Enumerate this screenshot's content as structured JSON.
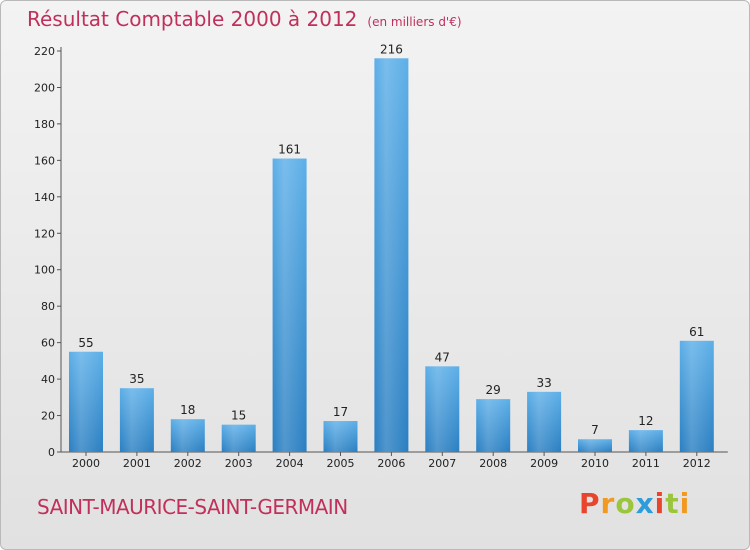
{
  "header": {
    "title": "Résultat Comptable 2000 à 2012",
    "unit": "(en milliers d'€)"
  },
  "footer": {
    "commune": "SAINT-MAURICE-SAINT-GERMAIN",
    "logo_text": "Proxiti"
  },
  "colors": {
    "title": "#c0305a",
    "bar_light": "#5dafe8",
    "bar_dark": "#2a7fc2",
    "logo": [
      "#e8452c",
      "#f29a1f",
      "#9bc53d",
      "#2d9cdb",
      "#e8452c",
      "#9bc53d",
      "#f29a1f"
    ]
  },
  "chart_data": {
    "type": "bar",
    "title": "Résultat Comptable 2000 à 2012",
    "xlabel": "",
    "ylabel": "",
    "categories": [
      "2000",
      "2001",
      "2002",
      "2003",
      "2004",
      "2005",
      "2006",
      "2007",
      "2008",
      "2009",
      "2010",
      "2011",
      "2012"
    ],
    "values": [
      55,
      35,
      18,
      15,
      161,
      17,
      216,
      47,
      29,
      33,
      7,
      12,
      61
    ],
    "ylim": [
      0,
      220
    ],
    "yticks": [
      0,
      20,
      40,
      60,
      80,
      100,
      120,
      140,
      160,
      180,
      200,
      220
    ],
    "grid": false,
    "legend": "none"
  }
}
